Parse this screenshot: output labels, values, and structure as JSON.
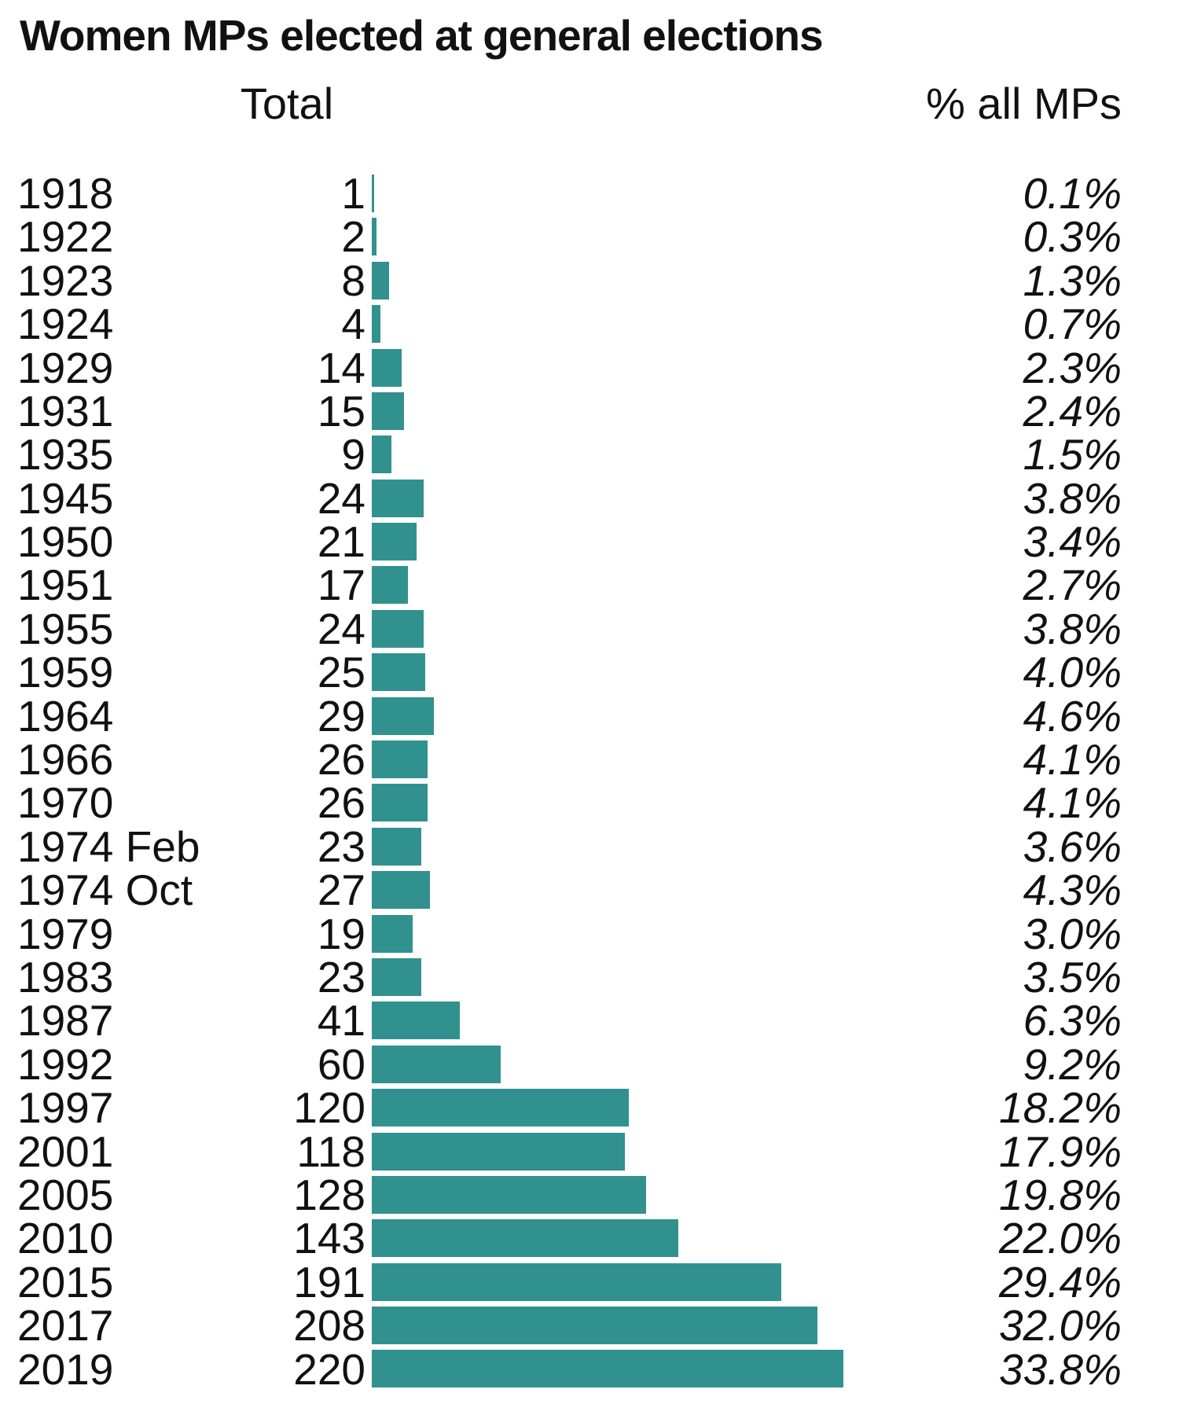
{
  "title": "Women MPs elected at general elections",
  "columns": {
    "total_label": "Total",
    "pct_label": "% all MPs"
  },
  "colors": {
    "bar": "#31918f",
    "text": "#111111",
    "background": "#ffffff"
  },
  "chart_data": {
    "type": "bar",
    "orientation": "horizontal",
    "title": "Women MPs elected at general elections",
    "categories": [
      "1918",
      "1922",
      "1923",
      "1924",
      "1929",
      "1931",
      "1935",
      "1945",
      "1950",
      "1951",
      "1955",
      "1959",
      "1964",
      "1966",
      "1970",
      "1974 Feb",
      "1974 Oct",
      "1979",
      "1983",
      "1987",
      "1992",
      "1997",
      "2001",
      "2005",
      "2010",
      "2015",
      "2017",
      "2019"
    ],
    "series": [
      {
        "name": "Total",
        "values": [
          1,
          2,
          8,
          4,
          14,
          15,
          9,
          24,
          21,
          17,
          24,
          25,
          29,
          26,
          26,
          23,
          27,
          19,
          23,
          41,
          60,
          120,
          118,
          128,
          143,
          191,
          208,
          220
        ]
      },
      {
        "name": "% all MPs",
        "values": [
          0.1,
          0.3,
          1.3,
          0.7,
          2.3,
          2.4,
          1.5,
          3.8,
          3.4,
          2.7,
          3.8,
          4.0,
          4.6,
          4.1,
          4.1,
          3.6,
          4.3,
          3.0,
          3.5,
          6.3,
          9.2,
          18.2,
          17.9,
          19.8,
          22.0,
          29.4,
          32.0,
          33.8
        ]
      }
    ],
    "pct_labels": [
      "0.1%",
      "0.3%",
      "1.3%",
      "0.7%",
      "2.3%",
      "2.4%",
      "1.5%",
      "3.8%",
      "3.4%",
      "2.7%",
      "3.8%",
      "4.0%",
      "4.6%",
      "4.1%",
      "4.1%",
      "3.6%",
      "4.3%",
      "3.0%",
      "3.5%",
      "6.3%",
      "9.2%",
      "18.2%",
      "17.9%",
      "19.8%",
      "22.0%",
      "29.4%",
      "32.0%",
      "33.8%"
    ],
    "xlim": [
      0,
      220
    ],
    "grid": false,
    "legend": false,
    "value_labels_shown": true
  }
}
